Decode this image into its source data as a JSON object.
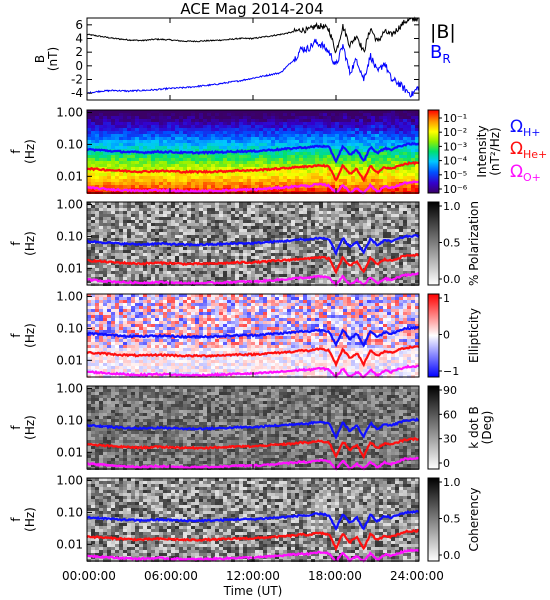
{
  "chart_data": [
    {
      "type": "line",
      "title": "ACE Mag 2014-204",
      "ylabel": "B",
      "yunit": "(nT)",
      "ylim": [
        -5,
        7
      ],
      "yticks": [
        -4,
        -2,
        0,
        2,
        4,
        6
      ],
      "xlim": [
        0,
        24
      ],
      "series": [
        {
          "name": "|B|",
          "color": "#000000",
          "x": [
            0,
            1,
            2,
            3,
            4,
            5,
            6,
            7,
            8,
            9,
            10,
            11,
            12,
            13,
            14,
            15,
            15.5,
            16,
            16.5,
            17,
            17.5,
            18,
            18.5,
            19,
            19.5,
            20,
            20.5,
            21,
            21.5,
            22,
            22.5,
            23,
            23.5,
            24
          ],
          "values": [
            4.6,
            4.3,
            4.0,
            3.8,
            3.7,
            3.9,
            3.8,
            3.6,
            3.6,
            3.7,
            3.8,
            4.0,
            4.0,
            4.3,
            4.6,
            5.0,
            5.3,
            5.2,
            5.8,
            5.8,
            5.3,
            2.0,
            5.8,
            3.0,
            4.5,
            2.0,
            5.5,
            3.5,
            5.0,
            4.5,
            5.5,
            6.5,
            6.8,
            7.0
          ]
        },
        {
          "name": "B_R",
          "color": "#0000ff",
          "x": [
            0,
            1,
            2,
            3,
            4,
            5,
            6,
            7,
            8,
            9,
            10,
            11,
            12,
            13,
            14,
            15,
            15.5,
            16,
            16.5,
            17,
            17.5,
            18,
            18.5,
            19,
            19.5,
            20,
            20.5,
            21,
            21.5,
            22,
            22.5,
            23,
            23.5,
            24
          ],
          "values": [
            -4.0,
            -3.7,
            -3.6,
            -3.7,
            -3.6,
            -3.5,
            -3.3,
            -3.2,
            -3.0,
            -2.8,
            -2.5,
            -2.2,
            -1.8,
            -1.4,
            -1.0,
            1.0,
            2.5,
            2.5,
            3.5,
            3.0,
            2.0,
            0.0,
            3.0,
            -1.0,
            1.0,
            -2.0,
            1.5,
            -1.0,
            0.5,
            -2.0,
            -2.5,
            -3.5,
            -4.2,
            -3.0
          ]
        }
      ]
    },
    {
      "type": "heatmap",
      "ylabel": "f",
      "yunit": "(Hz)",
      "yticks": [
        "1.00",
        "0.10",
        "0.01"
      ],
      "ylog": true,
      "ylim": [
        0.003,
        1.2
      ],
      "xlim": [
        0,
        24
      ],
      "colorbar": {
        "label": "Intensity",
        "unit": "(nT²/Hz)",
        "ticks": [
          "10⁻¹",
          "10⁻²",
          "10⁻³",
          "10⁻⁴",
          "10⁻⁵",
          "10⁻⁶"
        ],
        "range": [
          1e-06,
          0.1
        ],
        "scale": "log",
        "colormap": "rainbow"
      },
      "gyro_labels": [
        "ΩH+",
        "ΩHe+",
        "ΩO+"
      ]
    },
    {
      "type": "heatmap",
      "ylabel": "f",
      "yunit": "(Hz)",
      "yticks": [
        "1.00",
        "0.10",
        "0.01"
      ],
      "ylog": true,
      "ylim": [
        0.003,
        1.2
      ],
      "xlim": [
        0,
        24
      ],
      "colorbar": {
        "label": "% Polarization",
        "ticks": [
          "1.0",
          "0.5",
          "0.0"
        ],
        "range": [
          0,
          1
        ],
        "colormap": "greyscale"
      }
    },
    {
      "type": "heatmap",
      "ylabel": "f",
      "yunit": "(Hz)",
      "yticks": [
        "1.00",
        "0.10",
        "0.01"
      ],
      "ylog": true,
      "ylim": [
        0.003,
        1.2
      ],
      "xlim": [
        0,
        24
      ],
      "colorbar": {
        "label": "Ellipticity",
        "ticks": [
          "1",
          "0",
          "−1"
        ],
        "range": [
          -1,
          1
        ],
        "colormap": "blue-white-red"
      }
    },
    {
      "type": "heatmap",
      "ylabel": "f",
      "yunit": "(Hz)",
      "yticks": [
        "1.00",
        "0.10",
        "0.01"
      ],
      "ylog": true,
      "ylim": [
        0.003,
        1.2
      ],
      "xlim": [
        0,
        24
      ],
      "colorbar": {
        "label": "k dot B",
        "unit": "(Deg)",
        "ticks": [
          "90",
          "60",
          "30",
          "0"
        ],
        "range": [
          0,
          90
        ],
        "colormap": "greyscale"
      }
    },
    {
      "type": "heatmap",
      "ylabel": "f",
      "yunit": "(Hz)",
      "yticks": [
        "1.00",
        "0.10",
        "0.01"
      ],
      "ylog": true,
      "ylim": [
        0.003,
        1.2
      ],
      "xlim": [
        0,
        24
      ],
      "colorbar": {
        "label": "Coherency",
        "ticks": [
          "1.0",
          "0.5",
          "0.0"
        ],
        "range": [
          0,
          1
        ],
        "colormap": "greyscale"
      }
    }
  ],
  "gyrofrequency_lines": {
    "x": [
      0,
      1,
      2,
      3,
      4,
      5,
      6,
      7,
      8,
      9,
      10,
      11,
      12,
      13,
      14,
      15,
      15.5,
      16,
      16.5,
      17,
      17.5,
      18,
      18.5,
      19,
      19.5,
      20,
      20.5,
      21,
      21.5,
      22,
      22.5,
      23,
      23.5,
      24
    ],
    "series": [
      {
        "name": "ΩH+",
        "color": "#1010ff",
        "values": [
          0.07,
          0.066,
          0.061,
          0.058,
          0.056,
          0.059,
          0.058,
          0.055,
          0.055,
          0.056,
          0.058,
          0.061,
          0.061,
          0.066,
          0.07,
          0.076,
          0.081,
          0.079,
          0.088,
          0.088,
          0.081,
          0.03,
          0.088,
          0.046,
          0.069,
          0.03,
          0.084,
          0.053,
          0.076,
          0.069,
          0.084,
          0.099,
          0.103,
          0.107
        ]
      },
      {
        "name": "ΩHe+",
        "color": "#ff1010",
        "values": [
          0.0175,
          0.0165,
          0.0153,
          0.0145,
          0.014,
          0.0148,
          0.0145,
          0.0138,
          0.0138,
          0.014,
          0.0145,
          0.0153,
          0.0153,
          0.0165,
          0.0175,
          0.019,
          0.0203,
          0.0198,
          0.022,
          0.022,
          0.0203,
          0.0075,
          0.022,
          0.0115,
          0.0172,
          0.0075,
          0.021,
          0.0133,
          0.019,
          0.0172,
          0.021,
          0.0248,
          0.0258,
          0.0268
        ]
      },
      {
        "name": "ΩO+",
        "color": "#ff10ff",
        "values": [
          0.0044,
          0.0041,
          0.0038,
          0.0036,
          0.0035,
          0.0037,
          0.0036,
          0.0034,
          0.0034,
          0.0035,
          0.0036,
          0.0038,
          0.0038,
          0.0041,
          0.0044,
          0.0048,
          0.0051,
          0.0049,
          0.0055,
          0.0055,
          0.0051,
          0.003,
          0.0055,
          0.003,
          0.0043,
          0.003,
          0.0052,
          0.0033,
          0.0048,
          0.0043,
          0.0052,
          0.0062,
          0.0064,
          0.0067
        ]
      }
    ]
  },
  "x_axis": {
    "label": "Time (UT)",
    "ticks": [
      0,
      6,
      12,
      18,
      24
    ],
    "tick_labels": [
      "00:00:00",
      "06:00:00",
      "12:00:00",
      "18:00:00",
      "24:00:00"
    ]
  },
  "colors": {
    "text": "#000000",
    "b_total": "#000000",
    "b_radial": "#0000ff",
    "h_plus": "#1010ff",
    "he_plus": "#ff1010",
    "o_plus": "#ff10ff"
  }
}
